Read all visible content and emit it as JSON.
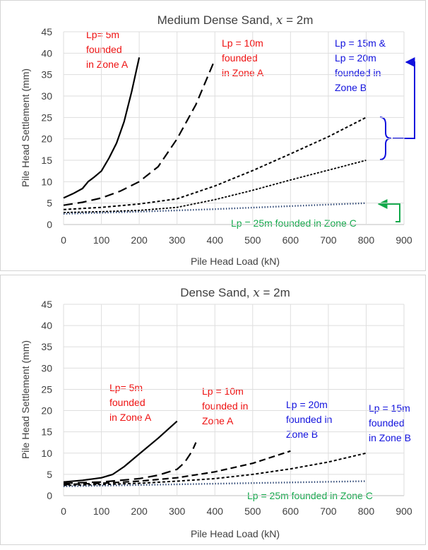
{
  "chart_data": [
    {
      "type": "line",
      "title_prefix": "Medium Dense Sand, ",
      "title_var": "x",
      "title_suffix": " = 2m",
      "xlabel": "Pile Head Load (kN)",
      "ylabel": "Pile Head Settlement (mm)",
      "xlim": [
        0,
        900
      ],
      "ylim": [
        0,
        45
      ],
      "xticks": [
        0,
        100,
        200,
        300,
        400,
        500,
        600,
        700,
        800,
        900
      ],
      "yticks": [
        0,
        5,
        10,
        15,
        20,
        25,
        30,
        35,
        40,
        45
      ],
      "grid": true,
      "legend": "none",
      "colors": {
        "red": "#ee1111",
        "blue": "#1111dd",
        "green": "#11a84a",
        "navy": "#1f3a6b"
      },
      "series": [
        {
          "style": "solid",
          "x": [
            0,
            25,
            50,
            65,
            80,
            100,
            120,
            140,
            160,
            180,
            200
          ],
          "y": [
            6.2,
            7.2,
            8.4,
            10,
            11,
            12.5,
            15.5,
            19,
            24,
            31,
            39
          ]
        },
        {
          "style": "longdash",
          "x": [
            0,
            50,
            100,
            150,
            200,
            250,
            300,
            350,
            400
          ],
          "y": [
            4.5,
            5.2,
            6.2,
            7.8,
            10,
            13.5,
            20,
            28,
            38.5
          ]
        },
        {
          "style": "shortdash",
          "x": [
            0,
            100,
            200,
            300,
            400,
            500,
            600,
            700,
            800
          ],
          "y": [
            3.5,
            4,
            4.8,
            6,
            9,
            12.6,
            16.5,
            20.5,
            25
          ]
        },
        {
          "style": "fine",
          "x": [
            0,
            100,
            200,
            300,
            400,
            500,
            600,
            700,
            800
          ],
          "y": [
            2.8,
            3,
            3.3,
            4,
            5.8,
            8,
            10.4,
            12.7,
            15
          ]
        },
        {
          "style": "dotted",
          "x": [
            0,
            200,
            400,
            600,
            800
          ],
          "y": [
            2.5,
            3,
            3.6,
            4.3,
            5
          ]
        }
      ],
      "annotations": [
        {
          "lines": [
            "Lp= 5m",
            "founded",
            "in Zone A"
          ],
          "color": "red"
        },
        {
          "lines": [
            "Lp = 10m",
            "founded",
            "in Zone A"
          ],
          "color": "red"
        },
        {
          "lines": [
            "Lp = 15m &",
            "Lp = 20m",
            "founded in",
            "Zone B"
          ],
          "color": "blue"
        },
        {
          "lines": [
            "Lp = 25m founded in Zone C"
          ],
          "color": "green"
        }
      ]
    },
    {
      "type": "line",
      "title_prefix": "Dense Sand, ",
      "title_var": "x",
      "title_suffix": " = 2m",
      "xlabel": "Pile Head Load (kN)",
      "ylabel": "Pile Head Settlement (mm)",
      "xlim": [
        0,
        900
      ],
      "ylim": [
        0,
        45
      ],
      "xticks": [
        0,
        100,
        200,
        300,
        400,
        500,
        600,
        700,
        800,
        900
      ],
      "yticks": [
        0,
        5,
        10,
        15,
        20,
        25,
        30,
        35,
        40,
        45
      ],
      "grid": true,
      "legend": "none",
      "colors": {
        "red": "#ee1111",
        "blue": "#1111dd",
        "green": "#11a84a",
        "navy": "#1f3a6b"
      },
      "series": [
        {
          "style": "solid",
          "x": [
            0,
            50,
            100,
            130,
            160,
            200,
            250,
            300
          ],
          "y": [
            3.2,
            3.6,
            4.2,
            5,
            6.8,
            9.8,
            13.5,
            17.5
          ]
        },
        {
          "style": "longdash",
          "x": [
            0,
            100,
            200,
            250,
            300,
            320,
            340,
            350
          ],
          "y": [
            2.9,
            3.2,
            4,
            4.8,
            6.2,
            7.8,
            10.5,
            12.5
          ]
        },
        {
          "style": "mediumdash",
          "x": [
            0,
            100,
            200,
            300,
            400,
            500,
            600
          ],
          "y": [
            2.6,
            2.9,
            3.4,
            4.2,
            5.6,
            7.6,
            10.5
          ]
        },
        {
          "style": "shortdash",
          "x": [
            0,
            100,
            200,
            300,
            400,
            500,
            600,
            700,
            800
          ],
          "y": [
            2.4,
            2.6,
            2.9,
            3.4,
            4,
            5,
            6.3,
            7.9,
            10
          ]
        },
        {
          "style": "dotted",
          "x": [
            0,
            200,
            400,
            600,
            800
          ],
          "y": [
            2.2,
            2.5,
            2.8,
            3.1,
            3.4
          ]
        }
      ],
      "annotations": [
        {
          "lines": [
            "Lp= 5m",
            "founded",
            "in Zone A"
          ],
          "color": "red"
        },
        {
          "lines": [
            "Lp = 10m",
            "founded in",
            "Zone A"
          ],
          "color": "red"
        },
        {
          "lines": [
            "Lp = 20m",
            "founded in",
            "Zone B"
          ],
          "color": "blue"
        },
        {
          "lines": [
            "Lp = 15m",
            "founded",
            "in Zone B"
          ],
          "color": "blue"
        },
        {
          "lines": [
            "Lp = 25m founded in Zone C"
          ],
          "color": "green"
        }
      ]
    }
  ]
}
